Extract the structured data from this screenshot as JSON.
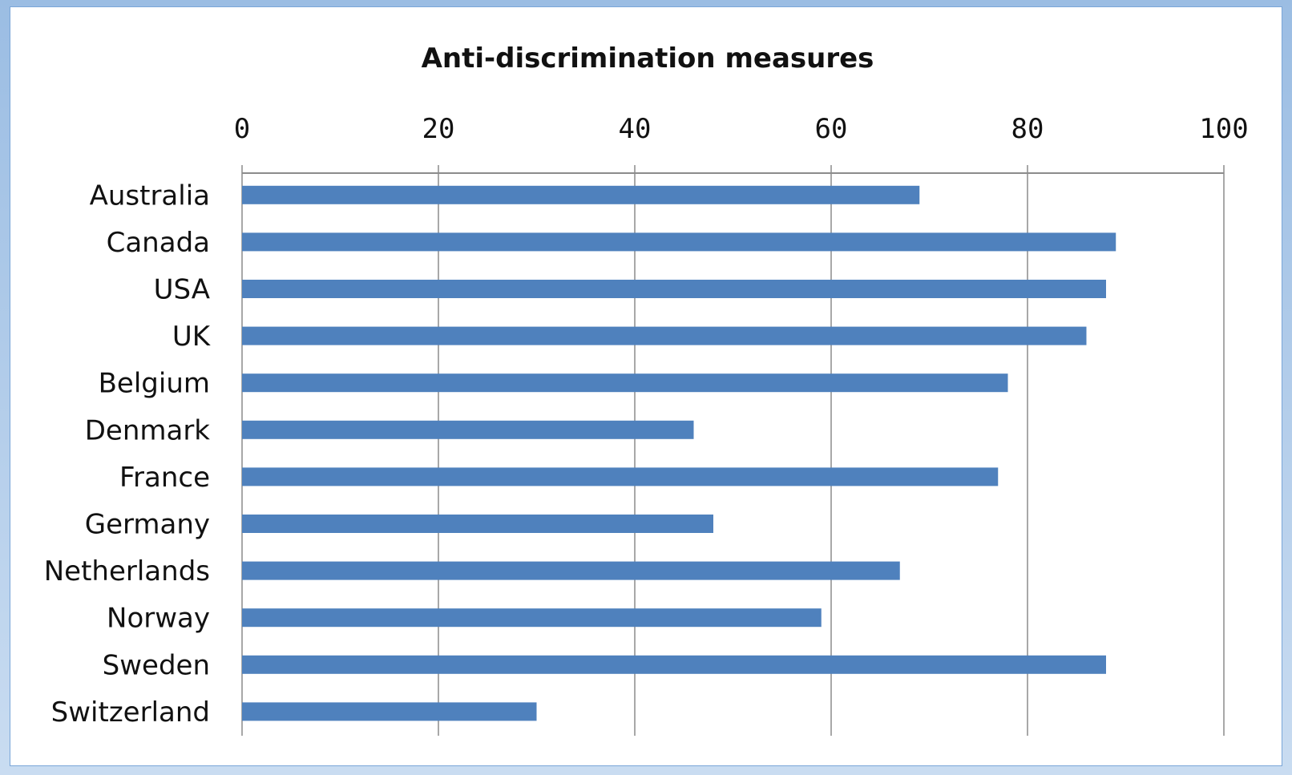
{
  "colors": {
    "bar": "#4f81bd",
    "grid": "#8c8c8c",
    "background": "#ffffff"
  },
  "chart_data": {
    "type": "bar",
    "orientation": "horizontal",
    "title": "Anti-discrimination measures",
    "xlabel": "",
    "ylabel": "",
    "xlim": [
      0,
      100
    ],
    "xticks": [
      0,
      20,
      40,
      60,
      80,
      100
    ],
    "x_axis_position": "top",
    "grid": true,
    "legend": false,
    "categories": [
      "Australia",
      "Canada",
      "USA",
      "UK",
      "Belgium",
      "Denmark",
      "France",
      "Germany",
      "Netherlands",
      "Norway",
      "Sweden",
      "Switzerland"
    ],
    "values": [
      69,
      89,
      88,
      86,
      78,
      46,
      77,
      48,
      67,
      59,
      88,
      30
    ]
  }
}
